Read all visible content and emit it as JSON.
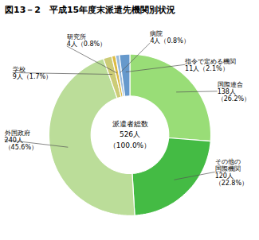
{
  "chart_data": {
    "type": "pie",
    "title": "図13－2　平成15年度末派遣先機関別状況",
    "categories": [
      "国際連合",
      "その他の\n国際機関",
      "外国政府",
      "学校",
      "研究所",
      "病院",
      "指令で定める機関"
    ],
    "values": [
      138,
      120,
      240,
      9,
      4,
      4,
      11
    ],
    "value_labels": [
      "138人\n（26.2%）",
      "120人\n（22.8%）",
      "240人\n（45.6%）",
      "9人（1.7%）",
      "4人（0.8%）",
      "4人（0.8%）",
      "11人（2.1%）"
    ],
    "colors": [
      "#99dd77",
      "#44bb44",
      "#bbdd99",
      "#cccc77",
      "#ddbb44",
      "#99bbdd",
      "#6699cc"
    ],
    "data_labels": true,
    "annotations": [
      "派遣者総数",
      "526人",
      "（100.0%）"
    ]
  }
}
